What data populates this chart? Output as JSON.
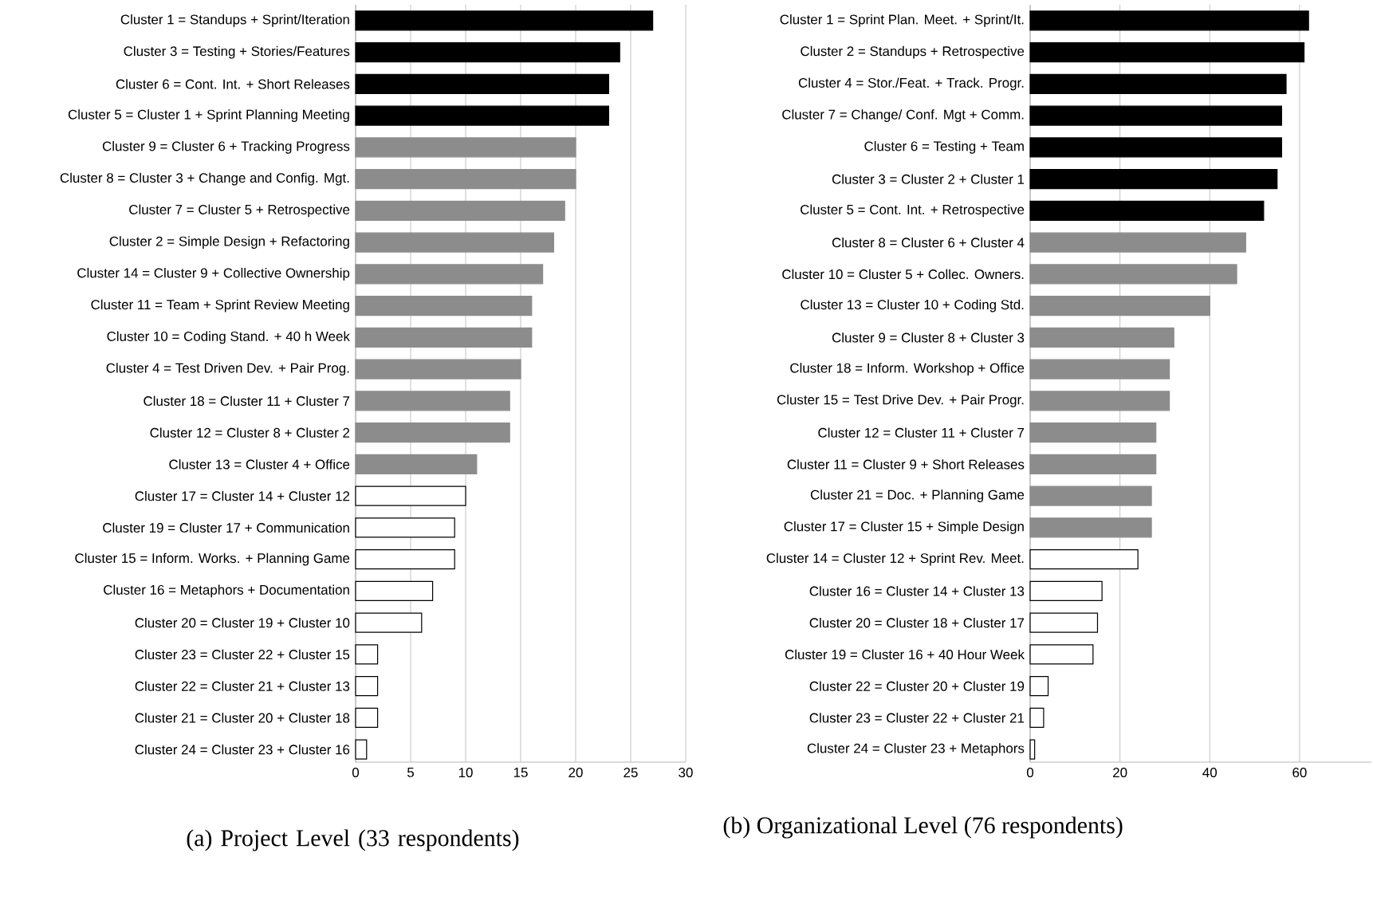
{
  "chart_data": [
    {
      "type": "bar",
      "orientation": "horizontal",
      "title": "(a) Project Level (33 respondents)",
      "categories": [
        "Cluster 1 = Standups + Sprint/Iteration",
        "Cluster 3 = Testing + Stories/Features",
        "Cluster 6 = Cont. Int. + Short Releases",
        "Cluster 5 = Cluster 1 + Sprint Planning Meeting",
        "Cluster 9 = Cluster 6 + Tracking Progress",
        "Cluster 8 = Cluster 3 + Change and Config. Mgt.",
        "Cluster 7 = Cluster 5 + Retrospective",
        "Cluster 2 = Simple Design + Refactoring",
        "Cluster 14 = Cluster 9 + Collective Ownership",
        "Cluster 11 = Team + Sprint Review Meeting",
        "Cluster 10 = Coding Stand. + 40 h Week",
        "Cluster 4 = Test Driven Dev. + Pair Prog.",
        "Cluster 18 = Cluster 11 + Cluster 7",
        "Cluster 12 = Cluster 8 + Cluster 2",
        "Cluster 13 = Cluster 4 + Office",
        "Cluster 17 = Cluster 14 + Cluster 12",
        "Cluster 19 = Cluster 17 + Communication",
        "Cluster 15 = Inform. Works. + Planning Game",
        "Cluster 16 = Metaphors + Documentation",
        "Cluster 20 = Cluster 19 + Cluster 10",
        "Cluster 23 = Cluster 22 + Cluster 15",
        "Cluster 22 = Cluster 21 + Cluster 13",
        "Cluster 21 = Cluster 20 + Cluster 18",
        "Cluster 24 = Cluster 23 + Cluster 16"
      ],
      "values": [
        27,
        24,
        23,
        23,
        20,
        20,
        19,
        18,
        17,
        16,
        16,
        15,
        14,
        14,
        11,
        10,
        9,
        9,
        7,
        6,
        2,
        2,
        2,
        1
      ],
      "colors": [
        "#000000",
        "#000000",
        "#000000",
        "#000000",
        "#8c8c8c",
        "#8c8c8c",
        "#8c8c8c",
        "#8c8c8c",
        "#8c8c8c",
        "#8c8c8c",
        "#8c8c8c",
        "#8c8c8c",
        "#8c8c8c",
        "#8c8c8c",
        "#8c8c8c",
        "#ffffff",
        "#ffffff",
        "#ffffff",
        "#ffffff",
        "#ffffff",
        "#ffffff",
        "#ffffff",
        "#ffffff",
        "#ffffff"
      ],
      "xlim": [
        0,
        30
      ],
      "xticks": [
        0,
        5,
        10,
        15,
        20,
        25,
        30
      ],
      "grid": "x"
    },
    {
      "type": "bar",
      "orientation": "horizontal",
      "title": "(b) Organizational Level (76 respondents)",
      "categories": [
        "Cluster 1 = Sprint Plan. Meet. + Sprint/It.",
        "Cluster 2 = Standups + Retrospective",
        "Cluster 4 = Stor./Feat. + Track. Progr.",
        "Cluster 7 = Change/ Conf. Mgt + Comm.",
        "Cluster 6 = Testing + Team",
        "Cluster 3 = Cluster 2 + Cluster 1",
        "Cluster 5 = Cont. Int. + Retrospective",
        "Cluster 8 = Cluster 6 + Cluster 4",
        "Cluster 10 = Cluster 5 + Collec. Owners.",
        "Cluster 13 = Cluster 10 + Coding Std.",
        "Cluster 9 = Cluster 8 + Cluster 3",
        "Cluster 18 = Inform. Workshop + Office",
        "Cluster 15 = Test Drive Dev. + Pair Progr.",
        "Cluster 12 = Cluster 11 + Cluster 7",
        "Cluster 11 = Cluster 9 + Short Releases",
        "Cluster 21 = Doc. + Planning Game",
        "Cluster 17 = Cluster 15 + Simple Design",
        "Cluster 14 = Cluster 12 + Sprint Rev. Meet.",
        "Cluster 16 = Cluster 14 + Cluster 13",
        "Cluster 20 = Cluster 18 + Cluster 17",
        "Cluster 19 = Cluster 16 + 40 Hour Week",
        "Cluster 22 = Cluster 20 + Cluster 19",
        "Cluster 23 = Cluster 22 + Cluster 21",
        "Cluster 24 = Cluster 23 + Metaphors"
      ],
      "values": [
        62,
        61,
        57,
        56,
        56,
        55,
        52,
        48,
        46,
        40,
        32,
        31,
        31,
        28,
        28,
        27,
        27,
        24,
        16,
        15,
        14,
        4,
        3,
        1
      ],
      "colors": [
        "#000000",
        "#000000",
        "#000000",
        "#000000",
        "#000000",
        "#000000",
        "#000000",
        "#8c8c8c",
        "#8c8c8c",
        "#8c8c8c",
        "#8c8c8c",
        "#8c8c8c",
        "#8c8c8c",
        "#8c8c8c",
        "#8c8c8c",
        "#8c8c8c",
        "#8c8c8c",
        "#ffffff",
        "#ffffff",
        "#ffffff",
        "#ffffff",
        "#ffffff",
        "#ffffff",
        "#ffffff"
      ],
      "xlim": [
        0,
        76
      ],
      "xticks": [
        0,
        20,
        40,
        60
      ],
      "grid": "x"
    }
  ]
}
